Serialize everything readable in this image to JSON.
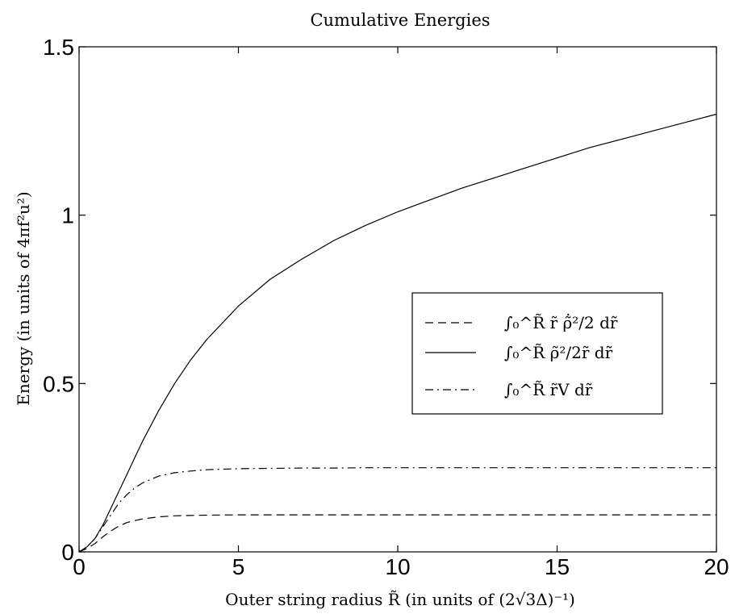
{
  "chart_data": {
    "type": "line",
    "title": "Cumulative Energies",
    "xlabel": "Outer string radius R̃ (in units of (2√3Δ)⁻¹)",
    "ylabel": "Energy (in units of 4πf²u²)",
    "xlim": [
      0,
      20
    ],
    "ylim": [
      0,
      1.5
    ],
    "xticks": [
      0,
      5,
      10,
      15,
      20
    ],
    "xtick_labels": [
      "0",
      "5",
      "10",
      "15",
      "20"
    ],
    "yticks": [
      0,
      0.5,
      1,
      1.5
    ],
    "ytick_labels": [
      "0",
      "0.5",
      "1",
      "1.5"
    ],
    "grid": false,
    "legend_position": "right",
    "x": [
      0,
      0.25,
      0.5,
      0.75,
      1,
      1.25,
      1.5,
      1.75,
      2,
      2.5,
      3,
      3.5,
      4,
      5,
      6,
      7,
      8,
      9,
      10,
      11,
      12,
      13,
      14,
      15,
      16,
      17,
      18,
      19,
      20
    ],
    "series": [
      {
        "name": "∫₀^R̃ r̃ ρ̃̇²/2 dr̃",
        "style": "dashed",
        "values": [
          0,
          0.01,
          0.025,
          0.045,
          0.062,
          0.077,
          0.087,
          0.093,
          0.098,
          0.104,
          0.107,
          0.108,
          0.109,
          0.11,
          0.11,
          0.11,
          0.11,
          0.11,
          0.11,
          0.11,
          0.11,
          0.11,
          0.11,
          0.11,
          0.11,
          0.11,
          0.11,
          0.11,
          0.11
        ]
      },
      {
        "name": "∫₀^R̃ ρ̃²/2r̃ dr̃",
        "style": "solid",
        "values": [
          0,
          0.015,
          0.04,
          0.08,
          0.13,
          0.18,
          0.23,
          0.28,
          0.33,
          0.42,
          0.5,
          0.57,
          0.63,
          0.73,
          0.81,
          0.87,
          0.925,
          0.97,
          1.01,
          1.045,
          1.08,
          1.11,
          1.14,
          1.17,
          1.2,
          1.225,
          1.25,
          1.275,
          1.3
        ]
      },
      {
        "name": "∫₀^R̃ r̃V dr̃",
        "style": "dashdot",
        "values": [
          0,
          0.015,
          0.04,
          0.075,
          0.11,
          0.145,
          0.17,
          0.19,
          0.205,
          0.225,
          0.235,
          0.24,
          0.244,
          0.247,
          0.248,
          0.249,
          0.249,
          0.25,
          0.25,
          0.25,
          0.25,
          0.25,
          0.25,
          0.25,
          0.25,
          0.25,
          0.25,
          0.25,
          0.25
        ]
      }
    ]
  }
}
